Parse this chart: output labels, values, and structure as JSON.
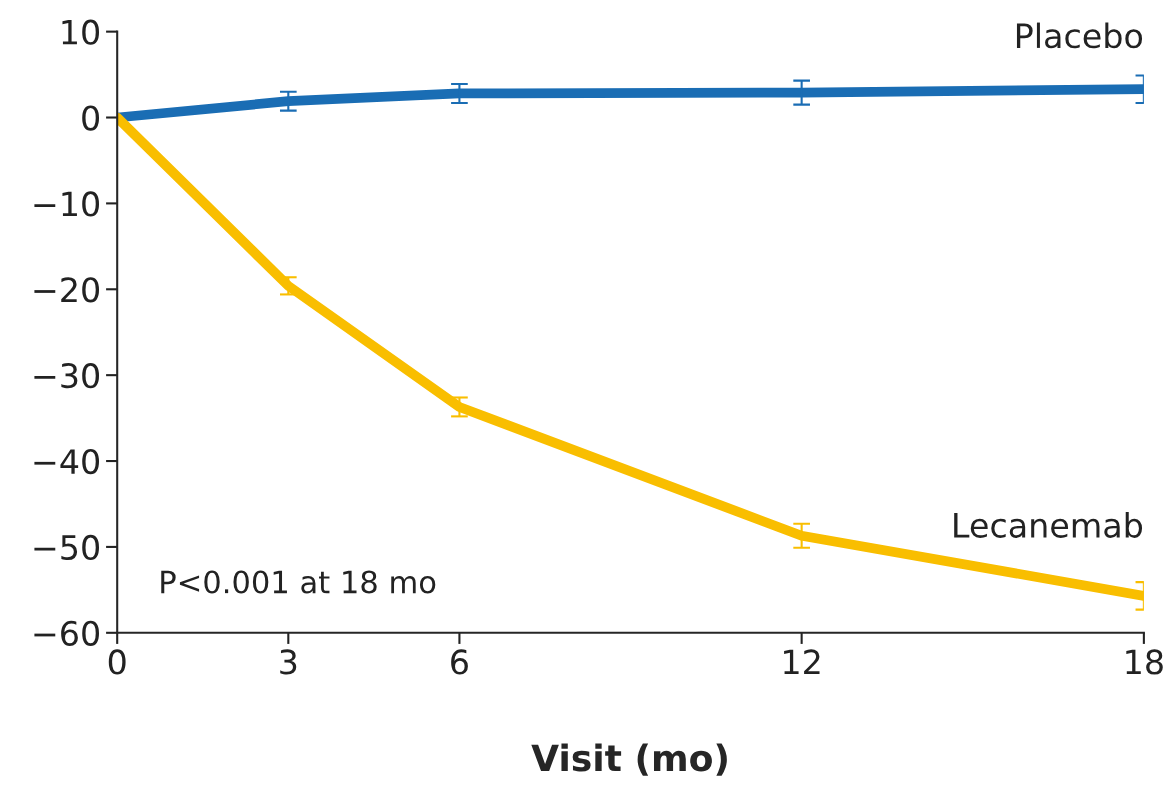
{
  "chart_data": {
    "type": "line",
    "xlabel": "Visit (mo)",
    "x": [
      0,
      3,
      6,
      12,
      18
    ],
    "series": [
      {
        "name": "Placebo",
        "color": "#1a6db4",
        "values": [
          0,
          1.9,
          2.8,
          2.9,
          3.3
        ],
        "errors": [
          null,
          1.1,
          1.1,
          1.4,
          1.6
        ]
      },
      {
        "name": "Lecanemab",
        "color": "#f9be00",
        "values": [
          0,
          -19.6,
          -33.7,
          -48.7,
          -55.7
        ],
        "errors": [
          null,
          1.0,
          1.1,
          1.4,
          1.6
        ]
      }
    ],
    "xlim": [
      0,
      18
    ],
    "xticks": [
      0,
      3,
      6,
      12,
      18
    ],
    "ylim": [
      -60,
      10
    ],
    "yticks": [
      10,
      0,
      -10,
      -20,
      -30,
      -40,
      -50,
      -60
    ],
    "annotations": [
      "P<0.001 at 18 mo"
    ],
    "grid": false,
    "legend": false,
    "marker": "none",
    "line_style": "solid"
  }
}
